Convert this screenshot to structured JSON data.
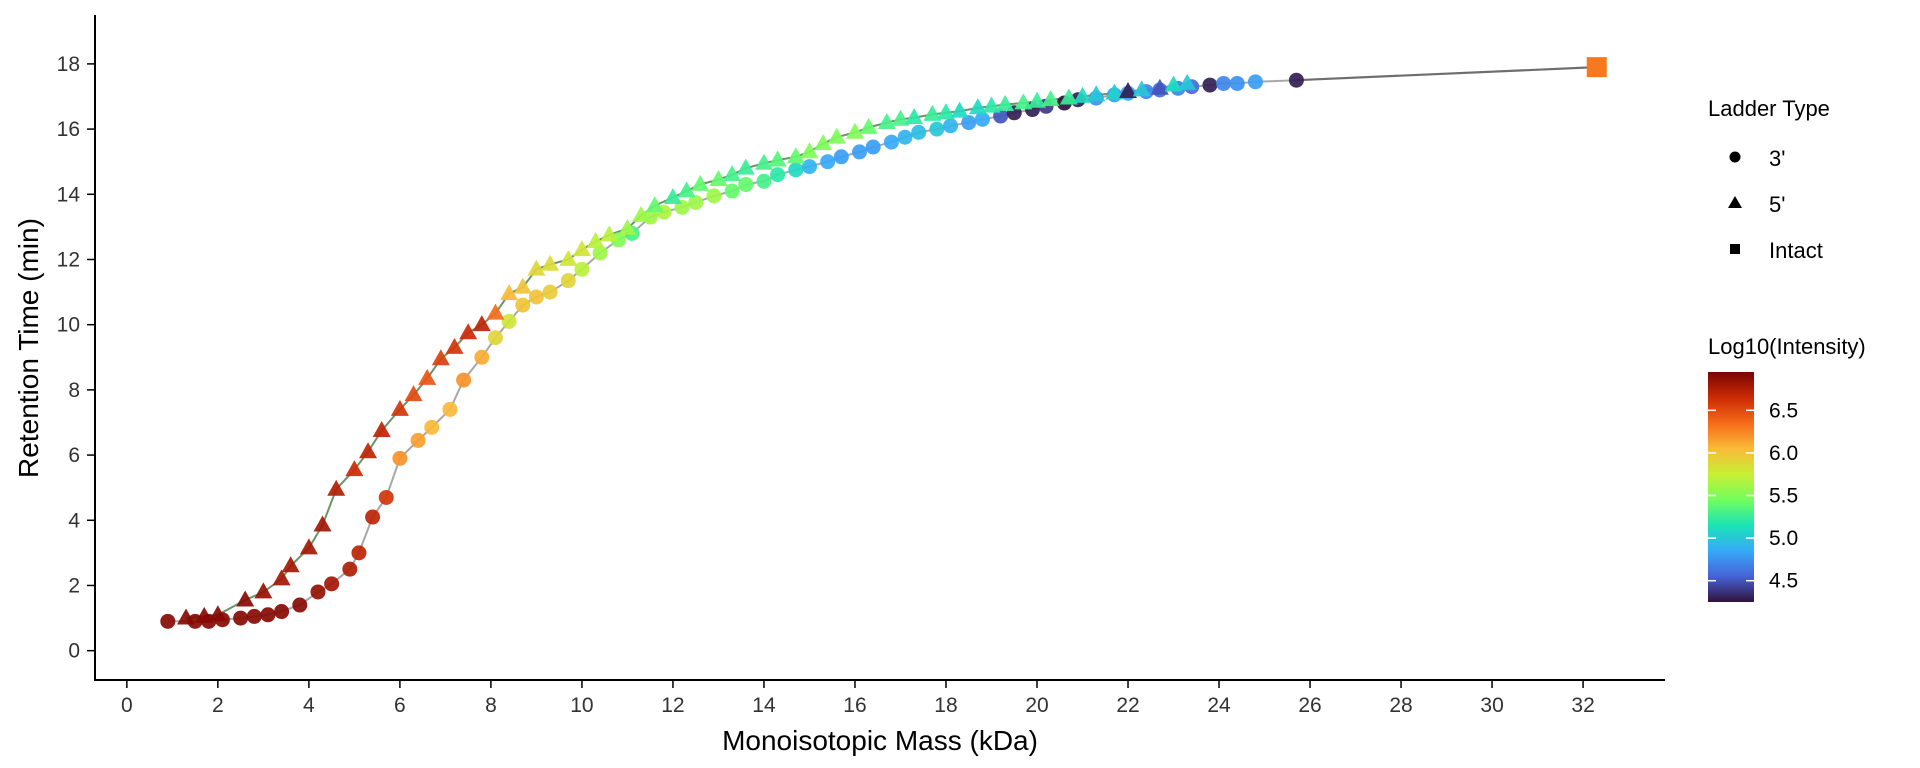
{
  "chart_data": {
    "type": "scatter",
    "title": "",
    "xlabel": "Monoisotopic Mass (kDa)",
    "ylabel": "Retention Time (min)",
    "xlim": [
      -0.7,
      33.8
    ],
    "ylim": [
      -0.9,
      19.5
    ],
    "xticks": [
      0,
      2,
      4,
      6,
      8,
      10,
      12,
      14,
      16,
      18,
      20,
      22,
      24,
      26,
      28,
      30,
      32
    ],
    "yticks": [
      0,
      2,
      4,
      6,
      8,
      10,
      12,
      14,
      16,
      18
    ],
    "grid": false,
    "legend_shape": {
      "title": "Ladder Type",
      "position": "right",
      "entries": [
        {
          "label": "3'",
          "shape": "circle"
        },
        {
          "label": "5'",
          "shape": "triangle"
        },
        {
          "label": "Intact",
          "shape": "square"
        }
      ]
    },
    "colorbar": {
      "title": "Log10(Intensity)",
      "position": "right",
      "range": [
        4.25,
        6.95
      ],
      "ticks": [
        6.5,
        6.0,
        5.5,
        5.0,
        4.5
      ],
      "tick_labels": [
        "6.5",
        "6.0",
        "5.5",
        "5.0",
        "4.5"
      ],
      "colormap": [
        "#30123b",
        "#4662d7",
        "#36aaf9",
        "#1ae4b6",
        "#72fe5e",
        "#c8ef34",
        "#faba39",
        "#f66b19",
        "#cb2a04",
        "#7a0403"
      ]
    },
    "series": [
      {
        "name": "3'",
        "shape": "circle",
        "line_color": "#9e9e9e",
        "x": [
          0.9,
          1.5,
          1.8,
          2.1,
          2.5,
          2.8,
          3.1,
          3.4,
          3.8,
          4.2,
          4.5,
          4.9,
          5.1,
          5.4,
          5.7,
          6.0,
          6.4,
          6.7,
          7.1,
          7.4,
          7.8,
          8.1,
          8.4,
          8.7,
          9.0,
          9.3,
          9.7,
          10.0,
          10.4,
          10.8,
          11.1,
          11.5,
          11.8,
          12.2,
          12.5,
          12.9,
          13.3,
          13.6,
          14.0,
          14.3,
          14.7,
          15.0,
          15.4,
          15.7,
          16.1,
          16.4,
          16.8,
          17.1,
          17.4,
          17.8,
          18.1,
          18.5,
          18.8,
          19.2,
          19.5,
          19.9,
          20.2,
          20.6,
          20.9,
          21.3,
          21.7,
          22.0,
          22.4,
          22.7,
          23.1,
          23.4,
          23.8,
          24.1,
          24.4,
          24.8,
          25.7
        ],
        "y": [
          0.9,
          0.9,
          0.9,
          0.95,
          1.0,
          1.05,
          1.1,
          1.2,
          1.4,
          1.8,
          2.05,
          2.5,
          3.0,
          4.1,
          4.7,
          5.9,
          6.45,
          6.85,
          7.4,
          8.3,
          9.0,
          9.6,
          10.1,
          10.6,
          10.85,
          11.0,
          11.35,
          11.7,
          12.2,
          12.6,
          12.8,
          13.3,
          13.45,
          13.6,
          13.75,
          13.95,
          14.1,
          14.3,
          14.4,
          14.6,
          14.75,
          14.85,
          15.0,
          15.15,
          15.3,
          15.45,
          15.6,
          15.75,
          15.9,
          16.0,
          16.1,
          16.2,
          16.3,
          16.4,
          16.5,
          16.6,
          16.7,
          16.8,
          16.9,
          16.95,
          17.05,
          17.1,
          17.15,
          17.2,
          17.25,
          17.3,
          17.35,
          17.4,
          17.4,
          17.45,
          17.5
        ],
        "log10_intensity": [
          6.9,
          6.9,
          6.9,
          6.9,
          6.9,
          6.9,
          6.9,
          6.9,
          6.9,
          6.85,
          6.8,
          6.75,
          6.7,
          6.7,
          6.6,
          6.2,
          6.15,
          6.05,
          6.05,
          6.2,
          6.1,
          5.9,
          5.8,
          6.0,
          6.0,
          5.95,
          5.9,
          5.7,
          5.6,
          5.5,
          5.3,
          5.6,
          5.65,
          5.6,
          5.6,
          5.6,
          5.4,
          5.4,
          5.3,
          5.2,
          5.1,
          4.9,
          4.85,
          4.8,
          4.8,
          4.8,
          4.85,
          4.9,
          4.95,
          5.0,
          4.9,
          4.8,
          4.85,
          4.5,
          4.3,
          4.3,
          4.4,
          4.25,
          4.3,
          4.75,
          4.8,
          4.8,
          4.7,
          4.6,
          4.7,
          4.6,
          4.3,
          4.7,
          4.75,
          4.8,
          4.3
        ]
      },
      {
        "name": "5'",
        "shape": "triangle",
        "line_color": "#5a8a5a",
        "x": [
          1.3,
          1.7,
          2.0,
          2.6,
          3.0,
          3.4,
          3.6,
          4.0,
          4.3,
          4.6,
          5.0,
          5.3,
          5.6,
          6.0,
          6.3,
          6.6,
          6.9,
          7.2,
          7.5,
          7.8,
          8.1,
          8.4,
          8.7,
          9.0,
          9.3,
          9.7,
          10.0,
          10.3,
          10.6,
          11.0,
          11.3,
          11.6,
          12.0,
          12.3,
          12.6,
          13.0,
          13.3,
          13.6,
          14.0,
          14.3,
          14.7,
          15.0,
          15.3,
          15.6,
          16.0,
          16.3,
          16.7,
          17.0,
          17.3,
          17.7,
          18.0,
          18.3,
          18.7,
          19.0,
          19.3,
          19.7,
          20.0,
          20.3,
          20.7,
          21.0,
          21.3,
          21.7,
          22.0,
          22.3,
          22.7,
          23.0,
          23.3
        ],
        "y": [
          1.0,
          1.05,
          1.1,
          1.55,
          1.8,
          2.2,
          2.6,
          3.15,
          3.85,
          4.95,
          5.55,
          6.1,
          6.75,
          7.4,
          7.85,
          8.35,
          8.95,
          9.3,
          9.75,
          10.0,
          10.35,
          10.95,
          11.15,
          11.7,
          11.85,
          12.0,
          12.3,
          12.55,
          12.75,
          12.95,
          13.35,
          13.65,
          13.9,
          14.1,
          14.3,
          14.45,
          14.6,
          14.8,
          14.95,
          15.05,
          15.15,
          15.3,
          15.55,
          15.75,
          15.9,
          16.05,
          16.2,
          16.3,
          16.35,
          16.45,
          16.5,
          16.55,
          16.65,
          16.7,
          16.75,
          16.8,
          16.85,
          16.9,
          16.95,
          17.0,
          17.05,
          17.1,
          17.15,
          17.2,
          17.25,
          17.35,
          17.4
        ],
        "log10_intensity": [
          6.9,
          6.9,
          6.9,
          6.9,
          6.85,
          6.8,
          6.8,
          6.8,
          6.8,
          6.75,
          6.65,
          6.7,
          6.7,
          6.6,
          6.5,
          6.45,
          6.55,
          6.6,
          6.65,
          6.7,
          6.35,
          6.05,
          6.0,
          5.9,
          5.85,
          5.8,
          5.8,
          5.7,
          5.7,
          5.6,
          5.6,
          5.4,
          5.25,
          5.3,
          5.4,
          5.4,
          5.3,
          5.25,
          5.3,
          5.35,
          5.4,
          5.5,
          5.5,
          5.5,
          5.5,
          5.4,
          5.3,
          5.3,
          5.2,
          5.25,
          5.2,
          5.1,
          5.1,
          5.2,
          5.25,
          5.3,
          5.25,
          5.3,
          5.25,
          5.1,
          5.0,
          5.05,
          4.3,
          5.0,
          4.5,
          5.1,
          5.0
        ]
      },
      {
        "name": "Intact",
        "shape": "square",
        "x": [
          32.3
        ],
        "y": [
          17.9
        ],
        "log10_intensity": [
          6.3
        ]
      }
    ],
    "connector": {
      "color": "#6e6e6e",
      "x": [
        25.7,
        32.3
      ],
      "y": [
        17.5,
        17.9
      ]
    }
  }
}
